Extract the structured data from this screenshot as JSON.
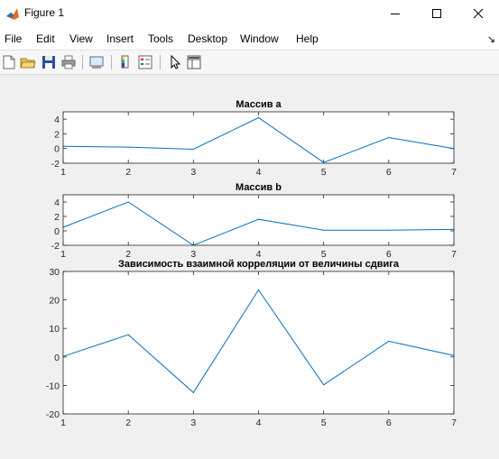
{
  "window": {
    "title": "Figure 1"
  },
  "menu": [
    "File",
    "Edit",
    "View",
    "Insert",
    "Tools",
    "Desktop",
    "Window",
    "Help"
  ],
  "toolbar_icons": [
    "new-figure-icon",
    "open-file-icon",
    "save-icon",
    "print-icon",
    "print-preview-icon",
    "colorbar-icon",
    "legend-icon",
    "pointer-icon",
    "property-editor-icon"
  ],
  "colors": {
    "line": "#0072bd",
    "axes_bg": "#ffffff",
    "figure_bg": "#f0f0f0"
  },
  "chart_data": [
    {
      "type": "line",
      "title": "Массив a",
      "x": [
        1,
        2,
        3,
        4,
        5,
        6,
        7
      ],
      "values": [
        0.3,
        0.2,
        -0.1,
        4.2,
        -1.9,
        1.5,
        0.0
      ],
      "xlim": [
        1,
        7
      ],
      "ylim": [
        -2,
        5
      ],
      "xticks": [
        "1",
        "2",
        "3",
        "4",
        "5",
        "6",
        "7"
      ],
      "yticks": [
        "-2",
        "0",
        "2",
        "4"
      ]
    },
    {
      "type": "line",
      "title": "Массив b",
      "x": [
        1,
        2,
        3,
        4,
        5,
        6,
        7
      ],
      "values": [
        0.5,
        4.0,
        -2.0,
        1.6,
        0.1,
        0.1,
        0.2
      ],
      "xlim": [
        1,
        7
      ],
      "ylim": [
        -2,
        5
      ],
      "xticks": [
        "1",
        "2",
        "3",
        "4",
        "5",
        "6",
        "7"
      ],
      "yticks": [
        "-2",
        "0",
        "2",
        "4"
      ]
    },
    {
      "type": "line",
      "title": "Зависимость взаимной корреляции от величины сдвига",
      "x": [
        1,
        2,
        3,
        4,
        5,
        6,
        7
      ],
      "values": [
        0.2,
        7.8,
        -12.5,
        23.5,
        -9.8,
        5.5,
        0.5
      ],
      "xlim": [
        1,
        7
      ],
      "ylim": [
        -20,
        30
      ],
      "xticks": [
        "1",
        "2",
        "3",
        "4",
        "5",
        "6",
        "7"
      ],
      "yticks": [
        "-20",
        "-10",
        "0",
        "10",
        "20",
        "30"
      ]
    }
  ]
}
